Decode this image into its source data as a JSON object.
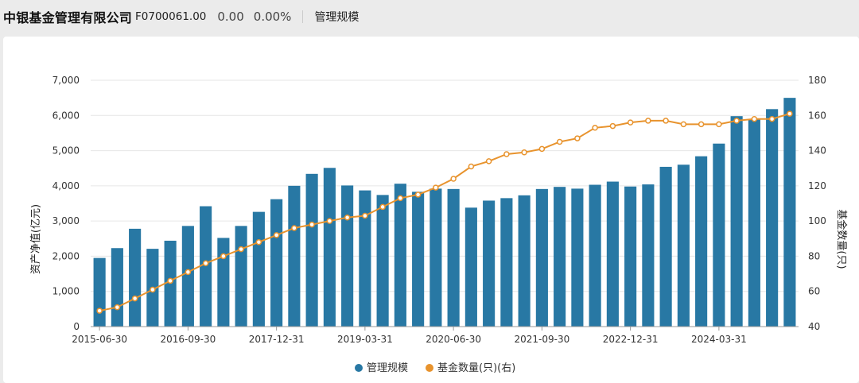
{
  "header": {
    "company": "中银基金管理有限公司",
    "code": "F0700061.00",
    "value": "0.00",
    "change": "0.00%",
    "metric": "管理规模"
  },
  "colors": {
    "bar": "#2878a4",
    "line": "#e8932d",
    "grid": "#e6e6e6"
  },
  "chart_data": {
    "type": "bar",
    "x_tick_labels": [
      "2015-06-30",
      "2016-09-30",
      "2017-12-31",
      "2019-03-31",
      "2020-06-30",
      "2021-09-30",
      "2022-12-31",
      "2024-03-31"
    ],
    "x_tick_index": [
      0,
      5,
      10,
      15,
      20,
      25,
      30,
      35
    ],
    "ylabel": "资产净值(亿元)",
    "ylabel_right": "基金数量(只)",
    "ylim": [
      0,
      7000
    ],
    "yticks": [
      "0",
      "1,000",
      "2,000",
      "3,000",
      "4,000",
      "5,000",
      "6,000",
      "7,000"
    ],
    "ylim_right": [
      40,
      180
    ],
    "yticks_right": [
      "40",
      "60",
      "80",
      "100",
      "120",
      "140",
      "160",
      "180"
    ],
    "grid": true,
    "legend_position": "bottom",
    "series": [
      {
        "name": "管理规模",
        "type": "bar",
        "axis": "left",
        "values": [
          1950,
          2230,
          2780,
          2210,
          2440,
          2860,
          3420,
          2520,
          2860,
          3260,
          3620,
          4000,
          4340,
          4510,
          4010,
          3870,
          3740,
          4060,
          3830,
          3920,
          3910,
          3380,
          3580,
          3650,
          3730,
          3910,
          3970,
          3920,
          4030,
          4120,
          3980,
          4040,
          4540,
          4600,
          4840,
          5200,
          5980,
          5900,
          6180,
          6500
        ]
      },
      {
        "name": "基金数量(只)(右)",
        "type": "line",
        "axis": "right",
        "values": [
          49,
          51,
          56,
          61,
          66,
          71,
          76,
          80,
          84,
          88,
          92,
          96,
          98,
          100,
          102,
          103,
          108,
          113,
          115,
          119,
          124,
          131,
          134,
          138,
          139,
          141,
          145,
          147,
          153,
          154,
          156,
          157,
          157,
          155,
          155,
          155,
          157,
          158,
          158,
          161
        ]
      }
    ]
  }
}
